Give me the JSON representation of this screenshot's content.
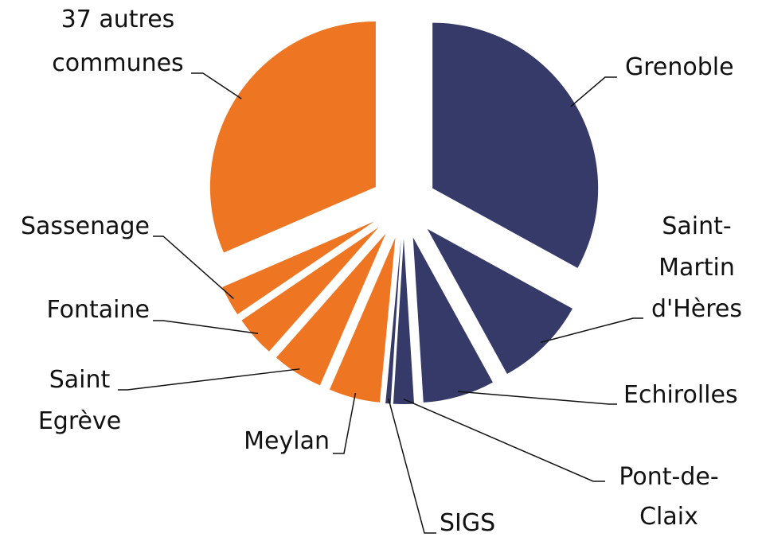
{
  "chart_data": {
    "type": "pie",
    "categories": [
      "Grenoble",
      "Saint-\nMartin\nd'Hères",
      "Echirolles",
      "Pont-de-\nClaix",
      "SIGS",
      "Meylan",
      "Saint\nEgrève",
      "Fontaine",
      "Sassenage",
      "37 autres\ncommunes"
    ],
    "values": [
      33,
      9,
      7,
      2,
      0.5,
      5,
      5,
      4,
      3,
      31.5
    ],
    "colors": [
      "#363a69",
      "#363a69",
      "#363a69",
      "#363a69",
      "#363a69",
      "#ee7623",
      "#ee7623",
      "#ee7623",
      "#ee7623",
      "#ee7623"
    ]
  }
}
